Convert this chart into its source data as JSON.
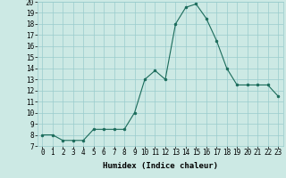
{
  "x": [
    0,
    1,
    2,
    3,
    4,
    5,
    6,
    7,
    8,
    9,
    10,
    11,
    12,
    13,
    14,
    15,
    16,
    17,
    18,
    19,
    20,
    21,
    22,
    23
  ],
  "y": [
    8,
    8,
    7.5,
    7.5,
    7.5,
    8.5,
    8.5,
    8.5,
    8.5,
    10,
    13,
    13.8,
    13,
    18,
    19.5,
    19.8,
    18.5,
    16.5,
    14,
    12.5,
    12.5,
    12.5,
    12.5,
    11.5
  ],
  "title": "",
  "xlabel": "Humidex (Indice chaleur)",
  "ylabel": "",
  "xlim": [
    -0.5,
    23.5
  ],
  "ylim": [
    7,
    20
  ],
  "yticks": [
    7,
    8,
    9,
    10,
    11,
    12,
    13,
    14,
    15,
    16,
    17,
    18,
    19,
    20
  ],
  "xticks": [
    0,
    1,
    2,
    3,
    4,
    5,
    6,
    7,
    8,
    9,
    10,
    11,
    12,
    13,
    14,
    15,
    16,
    17,
    18,
    19,
    20,
    21,
    22,
    23
  ],
  "bg_color": "#cce9e4",
  "line_color": "#1a6b5a",
  "marker_color": "#1a6b5a",
  "grid_color": "#99cccc",
  "label_fontsize": 6.5,
  "tick_fontsize": 5.5
}
